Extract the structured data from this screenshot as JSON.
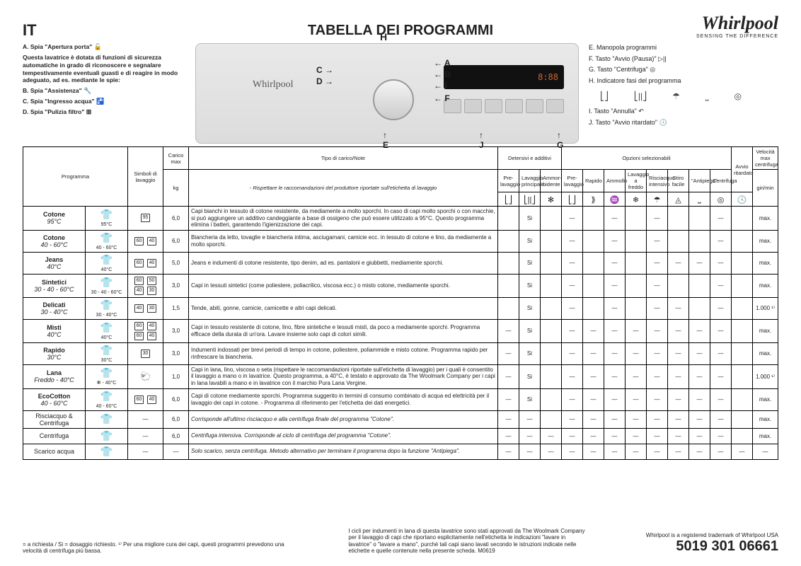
{
  "lang": "IT",
  "title": "TABELLA DEI PROGRAMMI",
  "brand": "Whirlpool",
  "brand_tag": "SENSING THE DIFFERENCE",
  "display_text": "8:88",
  "left_legend": {
    "a": "A.  Spia \"Apertura porta\"",
    "intro": "Questa lavatrice è dotata di funzioni di sicurezza automatiche in grado di riconoscere e segnalare tempestivamente eventuali guasti e di reagire in modo adeguato, ad es. mediante le spie:",
    "b": "B.  Spia \"Assistenza\"",
    "c": "C.  Spia \"Ingresso acqua\"",
    "d": "D.  Spia \"Pulizia filtro\""
  },
  "right_legend": {
    "e": "E.  Manopola programmi",
    "f": "F.  Tasto \"Avvio (Pausa)\"",
    "g": "G.  Tasto \"Centrifuga\"",
    "h": "H.  Indicatore fasi del programma",
    "i": "I.   Tasto \"Annulla\"",
    "j": "J.  Tasto \"Avvio ritardato\""
  },
  "machine_labels": {
    "C": "C",
    "D": "D",
    "H": "H",
    "E": "E",
    "A": "A",
    "B": "B",
    "I": "I",
    "F": "F",
    "J": "J",
    "G": "G"
  },
  "headers": {
    "programma": "Programma",
    "simboli": "Simboli di lavaggio",
    "carico": "Carico max",
    "kg": "kg",
    "tipo": "Tipo di carico/Note",
    "tipo_sub": "- Rispettare le raccomandazioni del produttore riportate sull'etichetta di lavaggio",
    "detersivi": "Detersivi e additivi",
    "opzioni": "Opzioni selezionabili",
    "avvio_rit": "Avvio ritardato",
    "vel": "Velocità max centrifuga",
    "giri": "giri/min",
    "d_pre": "Pre-lavaggio",
    "d_princ": "Lavaggio principale",
    "d_amm": "Ammor-bidente",
    "o_pre": "Pre-lavaggio",
    "o_rapido": "Rapido",
    "o_ammollo": "Ammollo",
    "o_freddo": "Lavaggio a freddo",
    "o_risc": "Risciacquo intensivo",
    "o_stiro": "Stiro facile",
    "o_anti": "\"Antipiega\"",
    "o_cent": "Centrifuga"
  },
  "icons": {
    "d_pre": "⎣⎦",
    "d_princ": "⎣||⎦",
    "d_amm": "✻",
    "o_pre": "⎣⎦",
    "o_rapido": "⟫",
    "o_ammollo": "♒",
    "o_freddo": "❄",
    "o_risc": "☂",
    "o_stiro": "◬",
    "o_anti": "⎵",
    "o_cent": "◎",
    "avvio": "🕓"
  },
  "si": "Si",
  "dash": "—",
  "max": "max.",
  "spin1000": "1.000 ¹⁾",
  "programs": [
    {
      "name": "Cotone",
      "temp": "95°C",
      "sym_txt": "95°C",
      "wash": [
        "95"
      ],
      "kg": "6,0",
      "note": "Capi bianchi in tessuto di cotone resistente, da mediamente a molto sporchi. In caso di capi molto sporchi o con macchie, si può aggiungere un additivo candeggiante a base di ossigeno che può essere utilizzato a 95°C. Questo programma elimina i batteri, garantendo l'igienizzazione dei capi.",
      "d": [
        "",
        "Si",
        ""
      ],
      "o": [
        "—",
        "",
        "—",
        "",
        "—",
        "",
        "",
        "—"
      ],
      "rit": "",
      "spin": "max."
    },
    {
      "name": "Cotone",
      "temp": "40 - 60°C",
      "sym_txt": "40 - 60°C",
      "wash": [
        "60",
        "40"
      ],
      "kg": "6,0",
      "note": "Biancheria da letto, tovaglie e biancheria intima, asciugamani, camicie ecc. in tessuto di cotone e lino, da mediamente a molto sporchi.",
      "d": [
        "",
        "Si",
        ""
      ],
      "o": [
        "—",
        "",
        "—",
        "",
        "—",
        "",
        "",
        "—"
      ],
      "rit": "",
      "spin": "max."
    },
    {
      "name": "Jeans",
      "temp": "40°C",
      "sym_txt": "40°C",
      "wash": [
        "60",
        "40"
      ],
      "kg": "5,0",
      "note": "Jeans e indumenti di cotone resistente, tipo denim, ad es. pantaloni e giubbetti, mediamente sporchi.",
      "d": [
        "",
        "Si",
        ""
      ],
      "o": [
        "—",
        "",
        "—",
        "",
        "—",
        "—",
        "—",
        "—"
      ],
      "rit": "",
      "spin": "max."
    },
    {
      "name": "Sintetici",
      "temp": "30 - 40 - 60°C",
      "sym_txt": "30 - 40 - 60°C",
      "wash": [
        "60",
        "50",
        "40",
        "30"
      ],
      "kg": "3,0",
      "note": "Capi in tessuti sintetici (come poliestere, poliacrilico, viscosa ecc.) o misto cotone, mediamente sporchi.",
      "d": [
        "",
        "Si",
        ""
      ],
      "o": [
        "—",
        "",
        "—",
        "",
        "—",
        "",
        "",
        "—"
      ],
      "rit": "",
      "spin": "max."
    },
    {
      "name": "Delicati",
      "temp": "30 - 40°C",
      "sym_txt": "30 - 40°C",
      "wash": [
        "40",
        "30"
      ],
      "kg": "1,5",
      "note": "Tende, abiti, gonne, camicie, camicette e altri capi delicati.",
      "d": [
        "",
        "Si",
        ""
      ],
      "o": [
        "—",
        "",
        "—",
        "",
        "—",
        "—",
        "",
        "—"
      ],
      "rit": "",
      "spin": "1.000 ¹⁾"
    },
    {
      "name": "Misti",
      "temp": "40°C",
      "sym_txt": "40°C",
      "wash": [
        "60",
        "40",
        "60",
        "40"
      ],
      "kg": "3,0",
      "note": "Capi in tessuto resistente di cotone, lino, fibre sintetiche e tessuti misti, da poco a mediamente sporchi. Programma efficace della durata di un'ora. Lavare insieme solo capi di colori simili.",
      "d": [
        "—",
        "Si",
        ""
      ],
      "o": [
        "—",
        "—",
        "—",
        "—",
        "—",
        "—",
        "—",
        "—"
      ],
      "rit": "",
      "spin": "max."
    },
    {
      "name": "Rapido",
      "temp": "30°C",
      "sym_txt": "30°C",
      "wash": [
        "30"
      ],
      "kg": "3,0",
      "note": "Indumenti indossati per brevi periodi di tempo in cotone, poliestere, poliammide e misto cotone. Programma rapido per rinfrescare la biancheria.",
      "d": [
        "—",
        "Si",
        ""
      ],
      "o": [
        "—",
        "—",
        "—",
        "—",
        "—",
        "—",
        "—",
        "—"
      ],
      "rit": "",
      "spin": "max."
    },
    {
      "name": "Lana",
      "temp": "Freddo - 40°C",
      "sym_txt": "✻ - 40°C",
      "wash": [
        "Wool"
      ],
      "kg": "1,0",
      "note": "Capi in lana, lino, viscosa o seta (rispettare le raccomandazioni riportate sull'etichetta di lavaggio) per i quali è consentito il lavaggio a mano o in lavatrice. Questo programma, a 40°C, è testato e approvato da The Woolmark Company per i capi in lana lavabili a mano e in lavatrice con il marchio Pura Lana Vergine.",
      "d": [
        "—",
        "Si",
        ""
      ],
      "o": [
        "—",
        "—",
        "—",
        "—",
        "—",
        "—",
        "—",
        "—"
      ],
      "rit": "",
      "spin": "1.000 ¹⁾"
    },
    {
      "name": "EcoCotton",
      "temp": "40 - 60°C",
      "sym_txt": "40 - 60°C",
      "wash": [
        "60",
        "40"
      ],
      "kg": "6,0",
      "note": "Capi di cotone mediamente sporchi. Programma suggerito in termini di consumo combinato di acqua ed elettricità per il lavaggio dei capi in cotone. - Programma di riferimento per l'etichetta dei dati energetici.",
      "d": [
        "—",
        "Si",
        ""
      ],
      "o": [
        "—",
        "—",
        "—",
        "—",
        "—",
        "—",
        "—",
        "—"
      ],
      "rit": "",
      "spin": "max."
    },
    {
      "name": "Risciacquo & Centrifuga",
      "temp": "",
      "sym_txt": "",
      "wash": [
        "—"
      ],
      "kg": "6,0",
      "note": "Corrisponde all'ultimo risciacquo e alla centrifuga finale del programma \"Cotone\".",
      "d": [
        "—",
        "—",
        ""
      ],
      "o": [
        "—",
        "—",
        "—",
        "—",
        "—",
        "—",
        "—",
        "—"
      ],
      "rit": "",
      "spin": "max.",
      "italic": true
    },
    {
      "name": "Centrifuga",
      "temp": "",
      "sym_txt": "",
      "wash": [
        "—"
      ],
      "kg": "6,0",
      "note": "Centrifuga intensiva. Corrisponde al ciclo di centrifuga del programma \"Cotone\".",
      "d": [
        "—",
        "—",
        "—"
      ],
      "o": [
        "—",
        "—",
        "—",
        "—",
        "—",
        "—",
        "—",
        "—"
      ],
      "rit": "",
      "spin": "max.",
      "italic": true
    },
    {
      "name": "Scarico acqua",
      "temp": "",
      "sym_txt": "",
      "wash": [
        "—"
      ],
      "kg": "—",
      "note": "Solo scarico, senza centrifuga. Metodo alternativo per terminare il programma dopo la funzione \"Antipiega\".",
      "d": [
        "—",
        "—",
        "—"
      ],
      "o": [
        "—",
        "—",
        "—",
        "—",
        "—",
        "—",
        "—",
        "—"
      ],
      "rit": "—",
      "spin": "—",
      "italic": true
    }
  ],
  "footer": {
    "left": "  = a richiesta  /  Si = dosaggio richiesto.\n¹⁾  Per una migliore cura dei capi, questi programmi prevedono una velocità di centrifuga più bassa.",
    "center": "I cicli per indumenti in lana di questa lavatrice sono stati approvati da The Woolmark Company per il lavaggio di capi che riportano esplicitamente nell'etichetta le indicazioni \"lavare in lavatrice\" o \"lavare a mano\", purché tali capi siano lavati secondo le istruzioni indicate nelle etichette e quelle contenute nella presente scheda. M0619",
    "right_small": "Whirlpool is a registered trademark of Whirlpool USA",
    "code": "5019 301 06661"
  }
}
